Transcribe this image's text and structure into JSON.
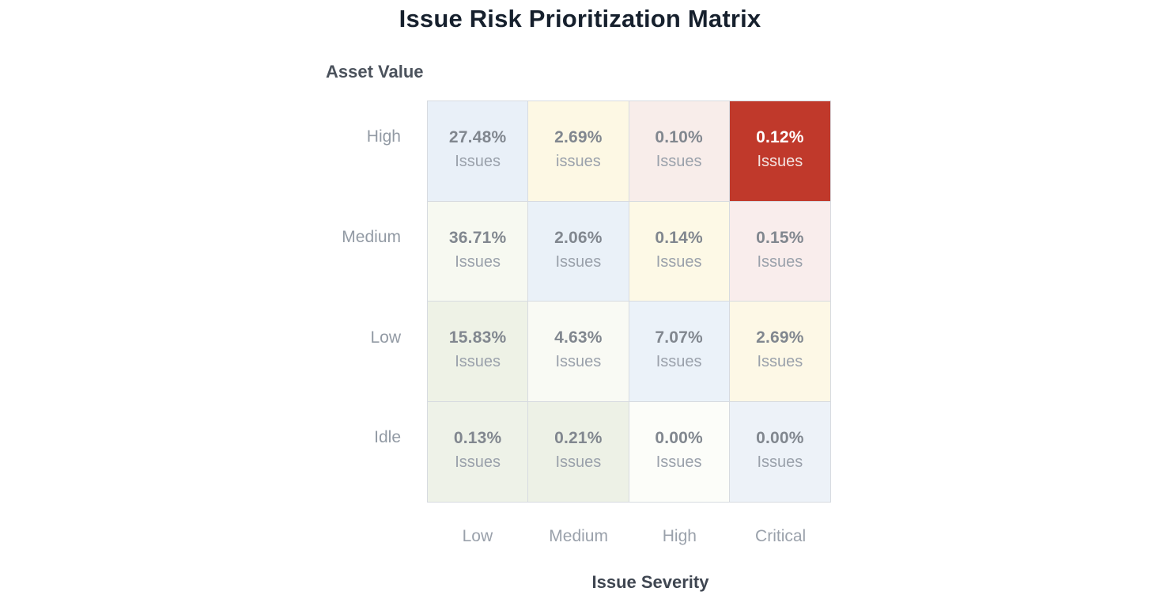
{
  "title": "Issue Risk Prioritization Matrix",
  "chart_data": {
    "type": "heatmap",
    "title": "Issue Risk Prioritization Matrix",
    "xlabel": "Issue Severity",
    "ylabel": "Asset Value",
    "rows": [
      "High",
      "Medium",
      "Low",
      "Idle"
    ],
    "columns": [
      "Low",
      "Medium",
      "High",
      "Critical"
    ],
    "unit": "Issues",
    "legend": "none",
    "grid": "on",
    "values_pct": [
      [
        27.48,
        2.69,
        0.1,
        0.12
      ],
      [
        36.71,
        2.06,
        0.14,
        0.15
      ],
      [
        15.83,
        4.63,
        7.07,
        2.69
      ],
      [
        0.13,
        0.21,
        0.0,
        0.0
      ]
    ],
    "colors": {
      "highlight_red": "#c0392b",
      "blue": "#e9f0f8",
      "yellow": "#fdf8e4",
      "pink": "#f8edea",
      "green": "#eef2e6",
      "offwhite": "#f9faf4",
      "border": "#d7dbe0",
      "value_text": "#81878f",
      "label_text": "#9aa1ab"
    },
    "cells": [
      [
        {
          "value": "27.48%",
          "label": "Issues",
          "bg": "#e9f0f8",
          "fg_value": "#81878f",
          "fg_label": "#9aa1ab"
        },
        {
          "value": "2.69%",
          "label": "issues",
          "bg": "#fdf8e4",
          "fg_value": "#81878f",
          "fg_label": "#9aa1ab"
        },
        {
          "value": "0.10%",
          "label": "Issues",
          "bg": "#f8edea",
          "fg_value": "#81878f",
          "fg_label": "#9aa1ab"
        },
        {
          "value": "0.12%",
          "label": "Issues",
          "bg": "#c0392b",
          "fg_value": "#ffffff",
          "fg_label": "#f3e4e1"
        }
      ],
      [
        {
          "value": "36.71%",
          "label": "Issues",
          "bg": "#f7f9f1",
          "fg_value": "#81878f",
          "fg_label": "#9aa1ab"
        },
        {
          "value": "2.06%",
          "label": "Issues",
          "bg": "#eaf1f8",
          "fg_value": "#81878f",
          "fg_label": "#9aa1ab"
        },
        {
          "value": "0.14%",
          "label": "Issues",
          "bg": "#fdf9e6",
          "fg_value": "#81878f",
          "fg_label": "#9aa1ab"
        },
        {
          "value": "0.15%",
          "label": "Issues",
          "bg": "#f9edec",
          "fg_value": "#81878f",
          "fg_label": "#9aa1ab"
        }
      ],
      [
        {
          "value": "15.83%",
          "label": "Issues",
          "bg": "#eef2e6",
          "fg_value": "#81878f",
          "fg_label": "#9aa1ab"
        },
        {
          "value": "4.63%",
          "label": "Issues",
          "bg": "#f9faf4",
          "fg_value": "#81878f",
          "fg_label": "#9aa1ab"
        },
        {
          "value": "7.07%",
          "label": "Issues",
          "bg": "#ebf2f9",
          "fg_value": "#81878f",
          "fg_label": "#9aa1ab"
        },
        {
          "value": "2.69%",
          "label": "Issues",
          "bg": "#fdf8e6",
          "fg_value": "#81878f",
          "fg_label": "#9aa1ab"
        }
      ],
      [
        {
          "value": "0.13%",
          "label": "Issues",
          "bg": "#eef2e8",
          "fg_value": "#81878f",
          "fg_label": "#9aa1ab"
        },
        {
          "value": "0.21%",
          "label": "Issues",
          "bg": "#edf1e6",
          "fg_value": "#81878f",
          "fg_label": "#9aa1ab"
        },
        {
          "value": "0.00%",
          "label": "Issues",
          "bg": "#fcfdf9",
          "fg_value": "#81878f",
          "fg_label": "#9aa1ab"
        },
        {
          "value": "0.00%",
          "label": "Issues",
          "bg": "#edf2f8",
          "fg_value": "#81878f",
          "fg_label": "#9aa1ab"
        }
      ]
    ]
  }
}
